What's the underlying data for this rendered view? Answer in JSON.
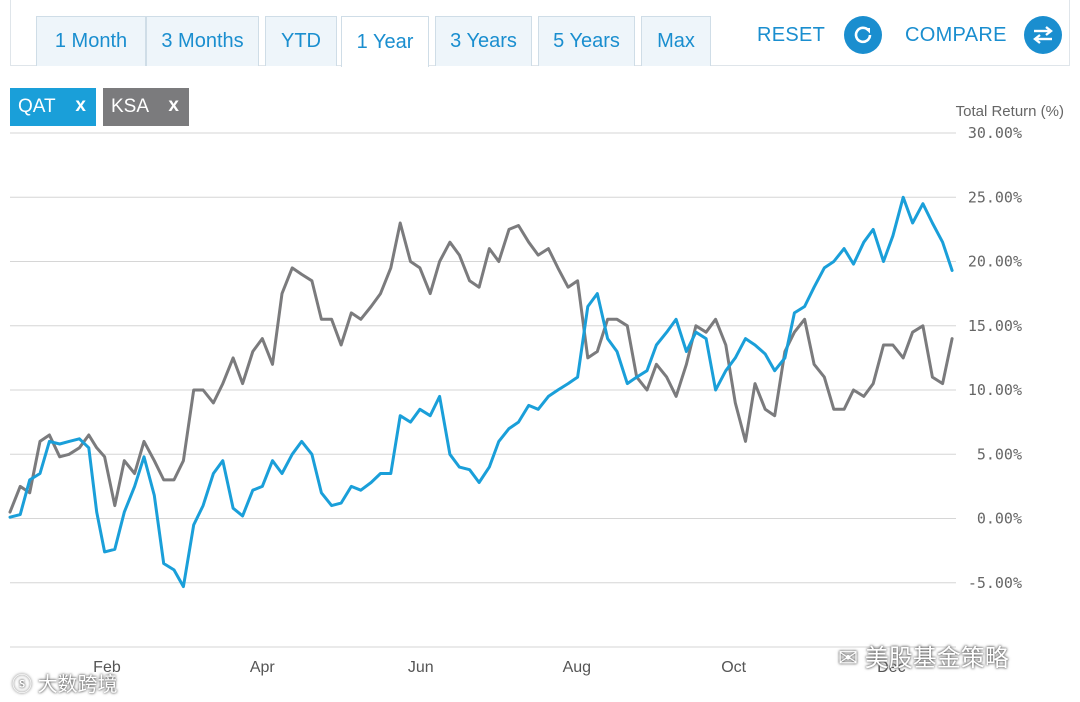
{
  "tabs": [
    {
      "label": "1 Month",
      "active": false
    },
    {
      "label": "3 Months",
      "active": false
    },
    {
      "label": "YTD",
      "active": false
    },
    {
      "label": "1 Year",
      "active": true
    },
    {
      "label": "3 Years",
      "active": false
    },
    {
      "label": "5 Years",
      "active": false
    },
    {
      "label": "Max",
      "active": false
    }
  ],
  "toolbar": {
    "reset_label": "RESET",
    "reset_icon": "refresh-icon",
    "compare_label": "COMPARE",
    "compare_icon": "swap-arrows-icon"
  },
  "chips": [
    {
      "label": "QAT",
      "remove": "x",
      "color": "#1a9fd9"
    },
    {
      "label": "KSA",
      "remove": "x",
      "color": "#7b7b7d"
    }
  ],
  "watermarks": {
    "left": "大数跨境",
    "right": "美股基金策略"
  },
  "chart_data": {
    "type": "line",
    "ylabel": "Total Return (%)",
    "ylim": [
      -10,
      30
    ],
    "yticks": [
      "30.00%",
      "25.00%",
      "20.00%",
      "15.00%",
      "10.00%",
      "5.00%",
      "0.00%",
      "-5.00%"
    ],
    "ytick_values": [
      30,
      25,
      20,
      15,
      10,
      5,
      0,
      -5
    ],
    "xlim": [
      0,
      12
    ],
    "xticks": [
      {
        "label": "Feb",
        "t": 1.23
      },
      {
        "label": "Apr",
        "t": 3.2
      },
      {
        "label": "Jun",
        "t": 5.21
      },
      {
        "label": "Aug",
        "t": 7.19
      },
      {
        "label": "Oct",
        "t": 9.18
      },
      {
        "label": "Dec",
        "t": 11.18
      }
    ],
    "grid": true,
    "series": [
      {
        "name": "QAT",
        "color": "#1a9fd9",
        "x": [
          0,
          0.13,
          0.25,
          0.38,
          0.5,
          0.63,
          0.75,
          0.88,
          1.0,
          1.1,
          1.2,
          1.33,
          1.45,
          1.58,
          1.7,
          1.83,
          1.95,
          2.08,
          2.2,
          2.33,
          2.45,
          2.58,
          2.7,
          2.83,
          2.95,
          3.08,
          3.2,
          3.33,
          3.45,
          3.58,
          3.7,
          3.83,
          3.95,
          4.08,
          4.2,
          4.33,
          4.45,
          4.58,
          4.7,
          4.83,
          4.95,
          5.08,
          5.2,
          5.33,
          5.45,
          5.58,
          5.7,
          5.83,
          5.95,
          6.08,
          6.2,
          6.33,
          6.45,
          6.58,
          6.7,
          6.83,
          6.95,
          7.08,
          7.2,
          7.33,
          7.45,
          7.58,
          7.7,
          7.83,
          7.95,
          8.08,
          8.2,
          8.33,
          8.45,
          8.58,
          8.7,
          8.83,
          8.95,
          9.08,
          9.2,
          9.33,
          9.45,
          9.58,
          9.7,
          9.83,
          9.95,
          10.08,
          10.2,
          10.33,
          10.45,
          10.58,
          10.7,
          10.83,
          10.95,
          11.08,
          11.2,
          11.33,
          11.45,
          11.58,
          11.7,
          11.83,
          11.95
        ],
        "y": [
          0.1,
          0.3,
          3.0,
          3.5,
          6.0,
          5.8,
          6.0,
          6.2,
          5.5,
          0.5,
          -2.6,
          -2.4,
          0.5,
          2.5,
          4.8,
          1.8,
          -3.5,
          -4.0,
          -5.3,
          -0.5,
          1.0,
          3.5,
          4.5,
          0.8,
          0.2,
          2.2,
          2.5,
          4.5,
          3.5,
          5.0,
          6.0,
          5.0,
          2.0,
          1.0,
          1.2,
          2.5,
          2.2,
          2.8,
          3.5,
          3.5,
          8.0,
          7.5,
          8.5,
          8.0,
          9.5,
          5.0,
          4.0,
          3.8,
          2.8,
          4.0,
          6.0,
          7.0,
          7.5,
          8.8,
          8.5,
          9.5,
          10.0,
          10.5,
          11.0,
          16.5,
          17.5,
          14.0,
          13.0,
          10.5,
          11.0,
          11.5,
          13.5,
          14.5,
          15.5,
          13.0,
          14.5,
          14.0,
          10.0,
          11.5,
          12.5,
          14.0,
          13.5,
          12.8,
          11.5,
          12.5,
          16.0,
          16.5,
          18.0,
          19.5,
          20.0,
          21.0,
          19.8,
          21.5,
          22.5,
          20.0,
          22.0,
          25.0,
          23.0,
          24.5,
          23.0,
          21.5,
          19.3
        ]
      },
      {
        "name": "KSA",
        "color": "#7b7b7d",
        "x": [
          0,
          0.13,
          0.25,
          0.38,
          0.5,
          0.63,
          0.75,
          0.88,
          1.0,
          1.1,
          1.2,
          1.33,
          1.45,
          1.58,
          1.7,
          1.83,
          1.95,
          2.08,
          2.2,
          2.33,
          2.45,
          2.58,
          2.7,
          2.83,
          2.95,
          3.08,
          3.2,
          3.33,
          3.45,
          3.58,
          3.7,
          3.83,
          3.95,
          4.08,
          4.2,
          4.33,
          4.45,
          4.58,
          4.7,
          4.83,
          4.95,
          5.08,
          5.2,
          5.33,
          5.45,
          5.58,
          5.7,
          5.83,
          5.95,
          6.08,
          6.2,
          6.33,
          6.45,
          6.58,
          6.7,
          6.83,
          6.95,
          7.08,
          7.2,
          7.33,
          7.45,
          7.58,
          7.7,
          7.83,
          7.95,
          8.08,
          8.2,
          8.33,
          8.45,
          8.58,
          8.7,
          8.83,
          8.95,
          9.08,
          9.2,
          9.33,
          9.45,
          9.58,
          9.7,
          9.83,
          9.95,
          10.08,
          10.2,
          10.33,
          10.45,
          10.58,
          10.7,
          10.83,
          10.95,
          11.08,
          11.2,
          11.33,
          11.45,
          11.58,
          11.7,
          11.83,
          11.95
        ],
        "y": [
          0.5,
          2.5,
          2.0,
          6.0,
          6.5,
          4.8,
          5.0,
          5.5,
          6.5,
          5.5,
          4.8,
          1.0,
          4.5,
          3.5,
          6.0,
          4.5,
          3.0,
          3.0,
          4.5,
          10.0,
          10.0,
          9.0,
          10.5,
          12.5,
          10.5,
          13.0,
          14.0,
          12.0,
          17.5,
          19.5,
          19.0,
          18.5,
          15.5,
          15.5,
          13.5,
          16.0,
          15.5,
          16.5,
          17.5,
          19.5,
          23.0,
          20.0,
          19.5,
          17.5,
          20.0,
          21.5,
          20.5,
          18.5,
          18.0,
          21.0,
          20.0,
          22.5,
          22.8,
          21.5,
          20.5,
          21.0,
          19.5,
          18.0,
          18.5,
          12.5,
          13.0,
          15.5,
          15.5,
          15.0,
          11.0,
          10.0,
          12.0,
          11.0,
          9.5,
          12.0,
          15.0,
          14.5,
          15.5,
          13.5,
          9.0,
          6.0,
          10.5,
          8.5,
          8.0,
          13.0,
          14.5,
          15.5,
          12.0,
          11.0,
          8.5,
          8.5,
          10.0,
          9.5,
          10.5,
          13.5,
          13.5,
          12.5,
          14.5,
          15.0,
          11.0,
          10.5,
          14.0
        ]
      }
    ]
  }
}
